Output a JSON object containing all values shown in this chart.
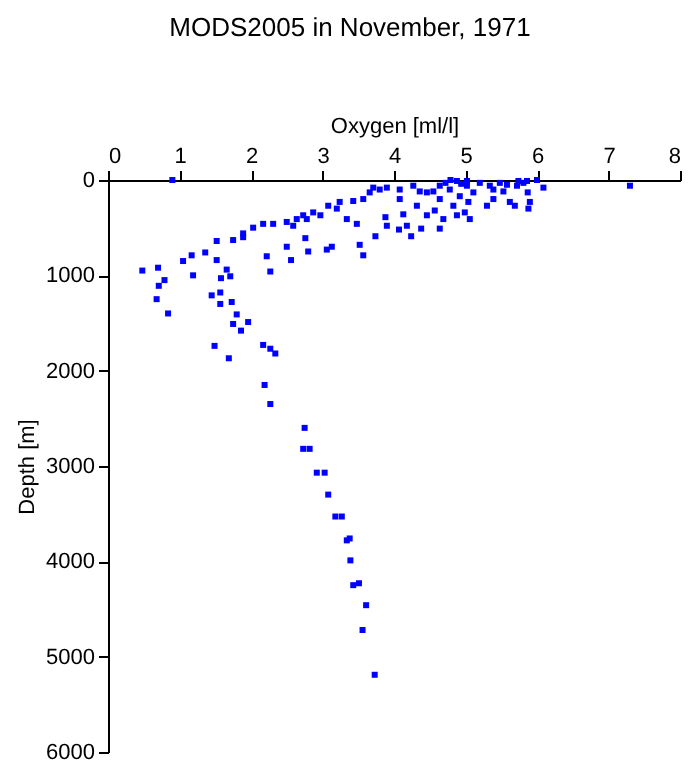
{
  "chart_data": {
    "type": "scatter",
    "title": "MODS2005 in November, 1971",
    "xlabel": "Oxygen [ml/l]",
    "ylabel": "Depth [m]",
    "xlim": [
      0,
      8
    ],
    "xticks": [
      0,
      1,
      2,
      3,
      4,
      5,
      6,
      7,
      8
    ],
    "ylim": [
      6000,
      0
    ],
    "yticks": [
      0,
      1000,
      2000,
      3000,
      4000,
      5000,
      6000
    ],
    "grid": false,
    "marker": "square",
    "series": [
      {
        "color": "#0000ff",
        "x": [
          0.9,
          7.3,
          6.09,
          6.0,
          0.48,
          0.7,
          0.71,
          0.68,
          0.79,
          0.84,
          1.05,
          1.19,
          1.17,
          1.36,
          1.52,
          1.52,
          1.58,
          1.57,
          1.45,
          1.66,
          1.71,
          1.57,
          1.73,
          1.8,
          1.75,
          1.96,
          1.86,
          1.49,
          2.17,
          2.27,
          2.34,
          1.75,
          1.89,
          1.89,
          2.03,
          2.17,
          2.31,
          2.22,
          2.27,
          2.56,
          2.5,
          2.76,
          2.59,
          2.78,
          2.8,
          2.97,
          3.06,
          3.13,
          3.2,
          3.34,
          3.24,
          3.52,
          3.48,
          3.57,
          3.57,
          3.71,
          3.88,
          3.74,
          3.9,
          4.07,
          4.08,
          4.13,
          4.18,
          4.27,
          4.24,
          4.32,
          4.38,
          4.46,
          4.46,
          4.64,
          4.57,
          4.64,
          4.72,
          4.78,
          4.83,
          4.88,
          4.92,
          5.02,
          4.99,
          5.02,
          5.04,
          5.11,
          5.2,
          5.3,
          5.34,
          5.39,
          5.48,
          5.53,
          5.62,
          5.69,
          5.72,
          5.81,
          5.87,
          5.9,
          5.88,
          5.74,
          5.86,
          4.79,
          4.88,
          4.94,
          5.06,
          4.69,
          5.39,
          5.58,
          4.64,
          4.55,
          4.36,
          4.08,
          3.9,
          3.8,
          3.66,
          3.43,
          3.08,
          2.87,
          2.73,
          2.64,
          2.5,
          1.69,
          2.19,
          2.27,
          2.75,
          2.73,
          2.82,
          2.92,
          3.03,
          3.08,
          3.18,
          3.27,
          3.34,
          3.38,
          3.39,
          3.43,
          3.51,
          3.61,
          3.56,
          3.73
        ],
        "values": [
          0,
          60,
          80,
          0,
          950,
          920,
          1110,
          1250,
          1050,
          1400,
          850,
          1000,
          790,
          760,
          840,
          640,
          1030,
          1180,
          1210,
          940,
          1010,
          1300,
          1280,
          1410,
          1510,
          1490,
          1580,
          1740,
          1730,
          1770,
          1820,
          630,
          560,
          600,
          500,
          460,
          460,
          800,
          960,
          840,
          700,
          610,
          480,
          410,
          750,
          370,
          730,
          700,
          300,
          410,
          230,
          680,
          460,
          790,
          200,
          80,
          390,
          590,
          480,
          520,
          200,
          360,
          480,
          60,
          590,
          270,
          510,
          370,
          130,
          510,
          320,
          200,
          30,
          100,
          270,
          370,
          170,
          60,
          340,
          10,
          230,
          130,
          30,
          270,
          60,
          200,
          30,
          120,
          230,
          270,
          60,
          30,
          130,
          230,
          300,
          10,
          10,
          0,
          10,
          40,
          410,
          410,
          100,
          50,
          60,
          120,
          120,
          100,
          80,
          100,
          130,
          220,
          270,
          340,
          370,
          410,
          440,
          1870,
          2150,
          2350,
          2600,
          2820,
          2820,
          3070,
          3070,
          3300,
          3530,
          3530,
          3780,
          3760,
          3990,
          4250,
          4230,
          4460,
          4720,
          5190
        ]
      }
    ]
  }
}
